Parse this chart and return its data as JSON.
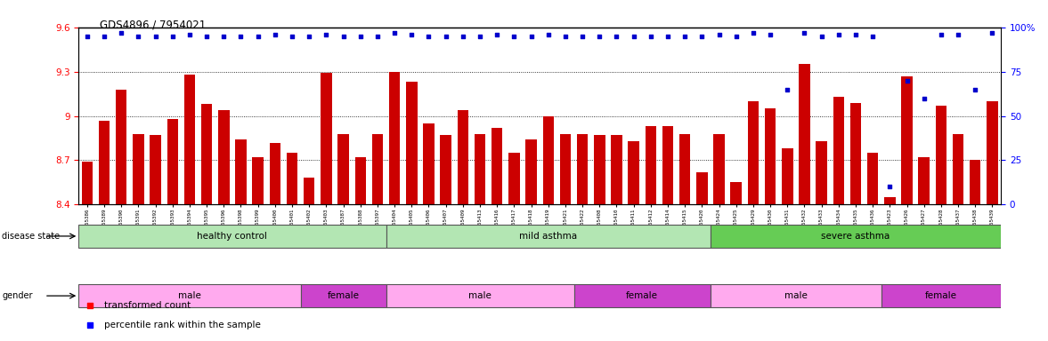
{
  "title": "GDS4896 / 7954021",
  "samples": [
    "GSM665386",
    "GSM665389",
    "GSM665390",
    "GSM665391",
    "GSM665392",
    "GSM665393",
    "GSM665394",
    "GSM665395",
    "GSM665396",
    "GSM665398",
    "GSM665399",
    "GSM665400",
    "GSM665401",
    "GSM665402",
    "GSM665403",
    "GSM665387",
    "GSM665388",
    "GSM665397",
    "GSM665404",
    "GSM665405",
    "GSM665406",
    "GSM665407",
    "GSM665409",
    "GSM665413",
    "GSM665416",
    "GSM665417",
    "GSM665418",
    "GSM665419",
    "GSM665421",
    "GSM665422",
    "GSM665408",
    "GSM665410",
    "GSM665411",
    "GSM665412",
    "GSM665414",
    "GSM665415",
    "GSM665420",
    "GSM665424",
    "GSM665425",
    "GSM665429",
    "GSM665430",
    "GSM665431",
    "GSM665432",
    "GSM665433",
    "GSM665434",
    "GSM665435",
    "GSM665436",
    "GSM665423",
    "GSM665426",
    "GSM665427",
    "GSM665428",
    "GSM665437",
    "GSM665438",
    "GSM665439"
  ],
  "bar_values": [
    8.69,
    8.97,
    9.18,
    8.88,
    8.87,
    8.98,
    9.28,
    9.08,
    9.04,
    8.84,
    8.72,
    8.82,
    8.75,
    8.58,
    9.29,
    8.88,
    8.72,
    8.88,
    9.3,
    9.23,
    8.95,
    8.87,
    9.04,
    8.88,
    8.92,
    8.75,
    8.84,
    9.0,
    8.88,
    8.88,
    8.87,
    8.87,
    8.83,
    8.93,
    8.93,
    8.88,
    8.62,
    8.88,
    8.55,
    9.1,
    9.05,
    8.78,
    9.35,
    8.83,
    9.13,
    9.09,
    8.75,
    8.45,
    9.27,
    8.72,
    9.07,
    8.88,
    8.7,
    9.1
  ],
  "percentile_values": [
    95,
    95,
    97,
    95,
    95,
    95,
    96,
    95,
    95,
    95,
    95,
    96,
    95,
    95,
    96,
    95,
    95,
    95,
    97,
    96,
    95,
    95,
    95,
    95,
    96,
    95,
    95,
    96,
    95,
    95,
    95,
    95,
    95,
    95,
    95,
    95,
    95,
    96,
    95,
    97,
    96,
    65,
    97,
    95,
    96,
    96,
    95,
    10,
    70,
    60,
    96,
    96,
    65,
    97
  ],
  "ylim": [
    8.4,
    9.6
  ],
  "yticks": [
    8.4,
    8.7,
    9.0,
    9.3,
    9.6
  ],
  "ytick_labels": [
    "8.4",
    "8.7",
    "9",
    "9.3",
    "9.6"
  ],
  "right_yticks": [
    0,
    25,
    50,
    75,
    100
  ],
  "right_ytick_labels": [
    "0",
    "25",
    "50",
    "75",
    "100%"
  ],
  "gridlines": [
    8.7,
    9.0,
    9.3
  ],
  "bar_color": "#cc0000",
  "percentile_color": "#0000cc",
  "disease_state_groups": [
    {
      "label": "healthy control",
      "start": 0,
      "end": 18,
      "color": "#aaddaa"
    },
    {
      "label": "mild asthma",
      "start": 18,
      "end": 37,
      "color": "#aaddaa"
    },
    {
      "label": "severe asthma",
      "start": 37,
      "end": 54,
      "color": "#66cc55"
    }
  ],
  "gender_groups": [
    {
      "label": "male",
      "start": 0,
      "end": 13,
      "color": "#ffaaff"
    },
    {
      "label": "female",
      "start": 13,
      "end": 18,
      "color": "#cc55cc"
    },
    {
      "label": "male",
      "start": 18,
      "end": 29,
      "color": "#ffaaff"
    },
    {
      "label": "female",
      "start": 29,
      "end": 37,
      "color": "#cc55cc"
    },
    {
      "label": "male",
      "start": 37,
      "end": 47,
      "color": "#ffaaff"
    },
    {
      "label": "female",
      "start": 47,
      "end": 54,
      "color": "#cc55cc"
    }
  ]
}
